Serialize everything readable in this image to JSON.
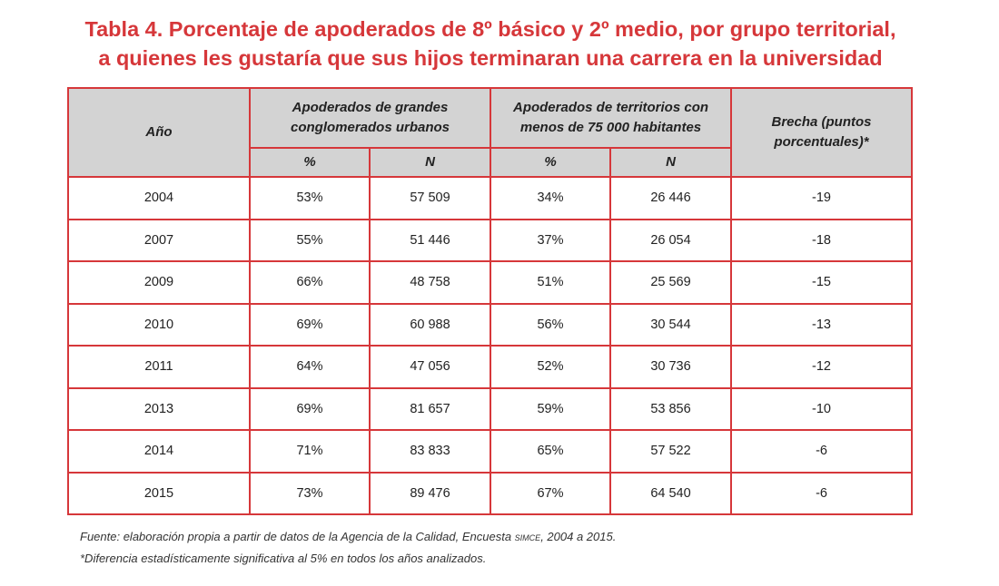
{
  "title": {
    "line1": "Tabla 4. Porcentaje de apoderados de 8º básico y 2º medio, por grupo territorial,",
    "line2": "a quienes les gustaría que sus hijos terminaran una carrera en la universidad"
  },
  "table": {
    "header": {
      "year": "Año",
      "group_urban_l1": "Apoderados de grandes",
      "group_urban_l2": "conglomerados urbanos",
      "group_small_l1": "Apoderados de territorios con",
      "group_small_l2": "menos de 75 000 habitantes",
      "gap_l1": "Brecha (puntos",
      "gap_l2": "porcentuales)*",
      "pct": "%",
      "n": "N"
    },
    "rows": [
      {
        "year": "2004",
        "urban_pct": "53%",
        "urban_n": "57 509",
        "small_pct": "34%",
        "small_n": "26 446",
        "gap": "-19"
      },
      {
        "year": "2007",
        "urban_pct": "55%",
        "urban_n": "51 446",
        "small_pct": "37%",
        "small_n": "26 054",
        "gap": "-18"
      },
      {
        "year": "2009",
        "urban_pct": "66%",
        "urban_n": "48 758",
        "small_pct": "51%",
        "small_n": "25 569",
        "gap": "-15"
      },
      {
        "year": "2010",
        "urban_pct": "69%",
        "urban_n": "60 988",
        "small_pct": "56%",
        "small_n": "30 544",
        "gap": "-13"
      },
      {
        "year": "2011",
        "urban_pct": "64%",
        "urban_n": "47 056",
        "small_pct": "52%",
        "small_n": "30 736",
        "gap": "-12"
      },
      {
        "year": "2013",
        "urban_pct": "69%",
        "urban_n": "81 657",
        "small_pct": "59%",
        "small_n": "53 856",
        "gap": "-10"
      },
      {
        "year": "2014",
        "urban_pct": "71%",
        "urban_n": "83 833",
        "small_pct": "65%",
        "small_n": "57 522",
        "gap": "-6"
      },
      {
        "year": "2015",
        "urban_pct": "73%",
        "urban_n": "89 476",
        "small_pct": "67%",
        "small_n": "64 540",
        "gap": "-6"
      }
    ]
  },
  "notes": {
    "source_pre": "Fuente: elaboración propia a partir de datos de la Agencia de la Calidad, Encuesta ",
    "source_simce": "simce",
    "source_post": ", 2004 a 2015.",
    "footnote": "*Diferencia estadísticamente significativa al 5% en todos los años analizados."
  },
  "colors": {
    "accent": "#d6373a",
    "header_bg": "#d3d3d3"
  }
}
